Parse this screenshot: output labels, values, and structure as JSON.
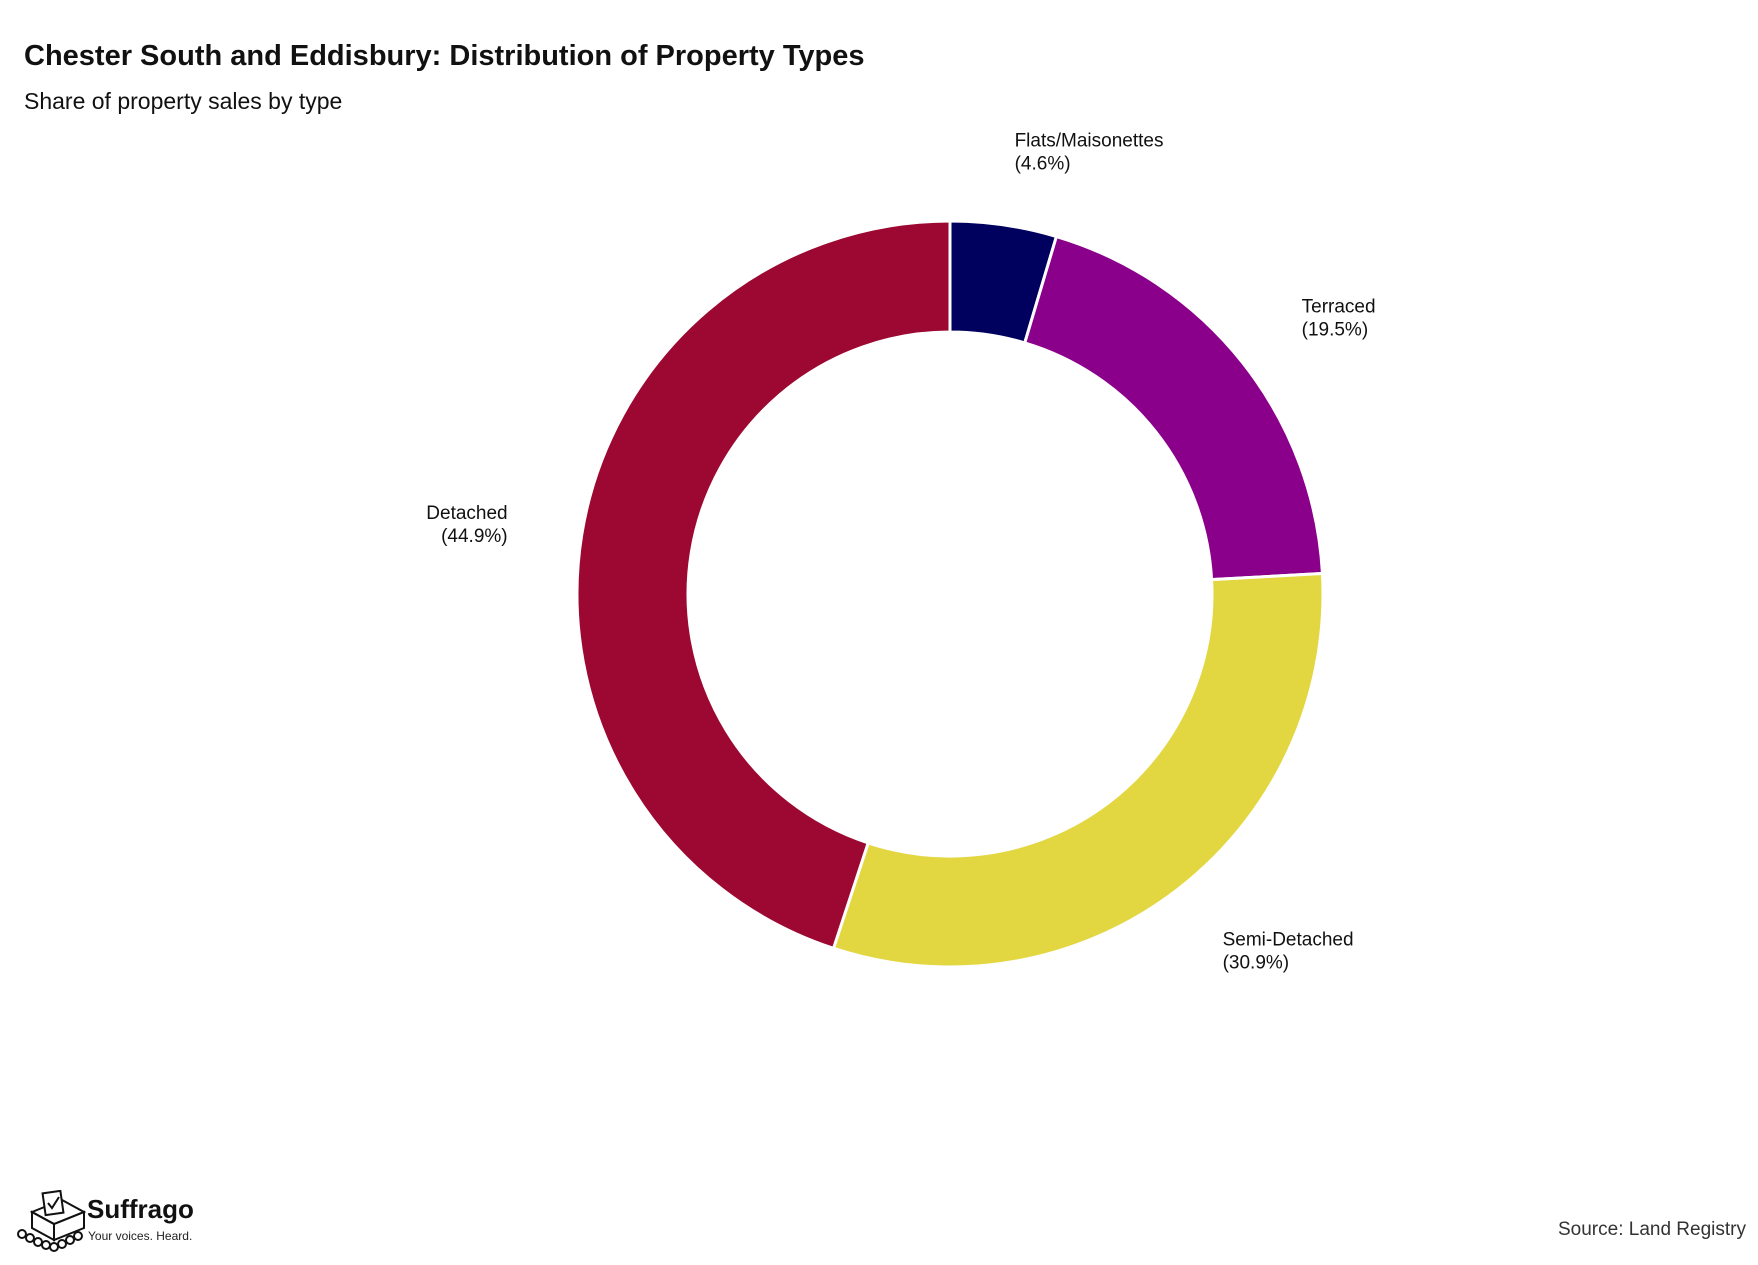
{
  "header": {
    "title": "Chester South and Eddisbury: Distribution of Property Types",
    "subtitle": "Share of property sales by type"
  },
  "chart_data": {
    "type": "pie",
    "donut": true,
    "title": "Chester South and Eddisbury: Distribution of Property Types",
    "subtitle": "Share of property sales by type",
    "categories": [
      "Flats/Maisonettes",
      "Terraced",
      "Semi-Detached",
      "Detached"
    ],
    "values": [
      4.6,
      19.5,
      30.9,
      44.9
    ],
    "labels": [
      "(4.6%)",
      "(19.5%)",
      "(30.9%)",
      "(44.9%)"
    ],
    "colors": [
      "#00005f",
      "#8b008b",
      "#e3d741",
      "#9c0832"
    ],
    "start_angle_deg": 0,
    "direction": "clockwise"
  },
  "footer": {
    "brand": "Suffrago",
    "tagline": "Your voices. Heard.",
    "source": "Source: Land Registry",
    "logo_icon": "ballot-box-icon"
  }
}
